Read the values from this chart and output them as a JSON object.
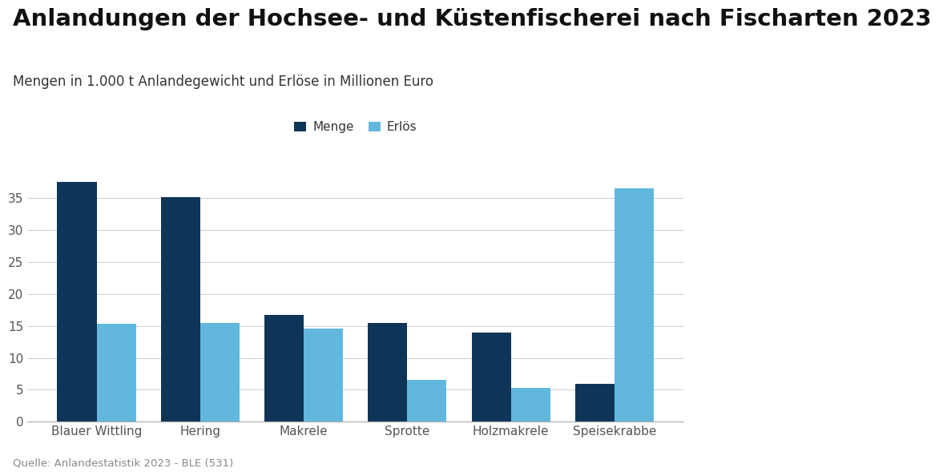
{
  "title": "Anlandungen der Hochsee- und Küstenfischerei nach Fischarten 2023",
  "subtitle": "Mengen in 1.000 t Anlandegewicht und Erlöse in Millionen Euro",
  "source": "Quelle: Anlandestatistik 2023 - BLE (531)",
  "categories": [
    "Blauer Wittling",
    "Hering",
    "Makrele",
    "Sprotte",
    "Holzmakrele",
    "Speisekrabbe"
  ],
  "menge": [
    37.5,
    35.2,
    16.7,
    15.5,
    14.0,
    5.9
  ],
  "erloes": [
    15.3,
    15.5,
    14.6,
    6.6,
    5.3,
    36.5
  ],
  "color_menge": "#0e3558",
  "color_erloes": "#62b8dc",
  "bar_width": 0.38,
  "ylim": [
    0,
    40
  ],
  "yticks": [
    0,
    5,
    10,
    15,
    20,
    25,
    30,
    35
  ],
  "legend_labels": [
    "Menge",
    "Erlös"
  ],
  "background_color": "#ffffff",
  "grid_color": "#d0d0d0",
  "title_fontsize": 21,
  "subtitle_fontsize": 12,
  "axis_fontsize": 11,
  "legend_fontsize": 11,
  "source_fontsize": 9.5
}
